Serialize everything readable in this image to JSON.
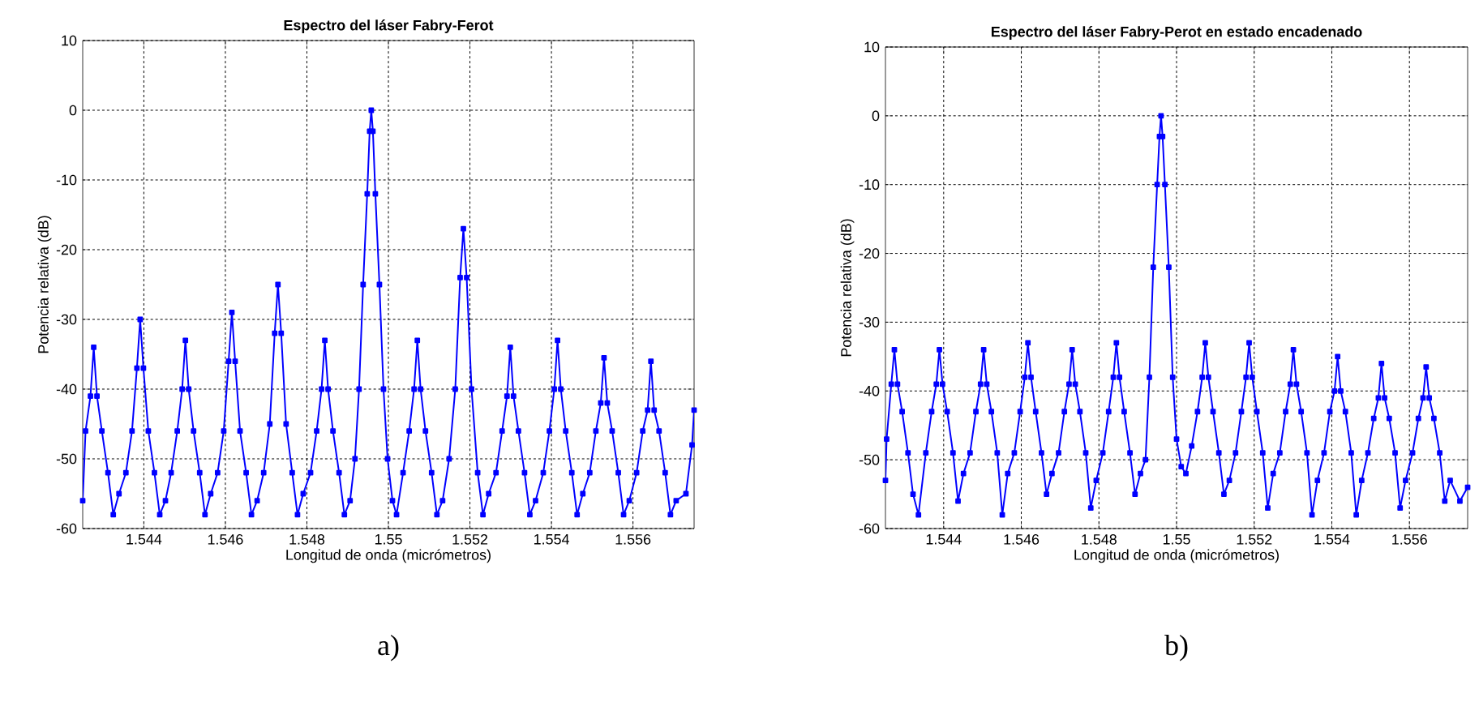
{
  "chart_data": [
    {
      "type": "line",
      "title": "Espectro del láser Fabry-Ferot",
      "xlabel": "Longitud de onda (micrómetros)",
      "ylabel": "Potencia relativa (dB)",
      "annotations": [
        "a)"
      ],
      "xlim": [
        1.5425,
        1.5575
      ],
      "ylim": [
        -60,
        10
      ],
      "xticks": [
        1.544,
        1.546,
        1.548,
        1.55,
        1.552,
        1.554,
        1.556
      ],
      "yticks": [
        -60,
        -50,
        -40,
        -30,
        -20,
        -10,
        0,
        10
      ],
      "grid": true,
      "marker": "square",
      "line_style": "solid",
      "color": "#0000ff",
      "x": [
        1.5425,
        1.54257,
        1.54269,
        1.54277,
        1.54285,
        1.54297,
        1.54312,
        1.54325,
        1.54339,
        1.54356,
        1.54371,
        1.54383,
        1.54391,
        1.54399,
        1.54411,
        1.54426,
        1.54439,
        1.54453,
        1.54467,
        1.54482,
        1.54494,
        1.54502,
        1.5451,
        1.54522,
        1.54537,
        1.5455,
        1.54564,
        1.54581,
        1.54596,
        1.54608,
        1.54616,
        1.54624,
        1.54636,
        1.54651,
        1.54664,
        1.54678,
        1.54694,
        1.54709,
        1.54721,
        1.54729,
        1.54737,
        1.54749,
        1.54764,
        1.54777,
        1.54791,
        1.54809,
        1.54824,
        1.54836,
        1.54844,
        1.54852,
        1.54864,
        1.54879,
        1.54892,
        1.54906,
        1.54918,
        1.54928,
        1.54938,
        1.54948,
        1.54954,
        1.54958,
        1.54962,
        1.54968,
        1.54978,
        1.54988,
        1.54998,
        1.5501,
        1.5502,
        1.55036,
        1.55051,
        1.55063,
        1.55071,
        1.55079,
        1.55091,
        1.55106,
        1.55119,
        1.55133,
        1.55149,
        1.55164,
        1.55176,
        1.55184,
        1.55192,
        1.55204,
        1.55219,
        1.55232,
        1.55246,
        1.55264,
        1.55279,
        1.55291,
        1.55299,
        1.55307,
        1.55319,
        1.55334,
        1.55347,
        1.55361,
        1.5538,
        1.55395,
        1.55407,
        1.55415,
        1.55423,
        1.55435,
        1.5545,
        1.55463,
        1.55477,
        1.55494,
        1.55509,
        1.55521,
        1.55529,
        1.55537,
        1.55549,
        1.55564,
        1.55577,
        1.55591,
        1.55609,
        1.55624,
        1.55636,
        1.55644,
        1.55652,
        1.55664,
        1.55679,
        1.55692,
        1.55706,
        1.5573,
        1.55745,
        1.5575
      ],
      "values": [
        -56,
        -46,
        -41,
        -34,
        -41,
        -46,
        -52,
        -58,
        -55,
        -52,
        -46,
        -37,
        -30,
        -37,
        -46,
        -52,
        -58,
        -56,
        -52,
        -46,
        -40,
        -33,
        -40,
        -46,
        -52,
        -58,
        -55,
        -52,
        -46,
        -36,
        -29,
        -36,
        -46,
        -52,
        -58,
        -56,
        -52,
        -45,
        -32,
        -25,
        -32,
        -45,
        -52,
        -58,
        -55,
        -52,
        -46,
        -40,
        -33,
        -40,
        -46,
        -52,
        -58,
        -56,
        -50,
        -40,
        -25,
        -12,
        -3,
        0,
        -3,
        -12,
        -25,
        -40,
        -50,
        -56,
        -58,
        -52,
        -46,
        -40,
        -33,
        -40,
        -46,
        -52,
        -58,
        -56,
        -50,
        -40,
        -24,
        -17,
        -24,
        -40,
        -52,
        -58,
        -55,
        -52,
        -46,
        -41,
        -34,
        -41,
        -46,
        -52,
        -58,
        -56,
        -52,
        -46,
        -40,
        -33,
        -40,
        -46,
        -52,
        -58,
        -55,
        -52,
        -46,
        -42,
        -35.5,
        -42,
        -46,
        -52,
        -58,
        -56,
        -52,
        -46,
        -43,
        -36,
        -43,
        -46,
        -52,
        -58,
        -56,
        -55,
        -48,
        -43
      ]
    },
    {
      "type": "line",
      "title": "Espectro del láser Fabry-Perot en estado encadenado",
      "xlabel": "Longitud de onda (micrómetros)",
      "ylabel": "Potencia relativa (dB)",
      "annotations": [
        "b)"
      ],
      "xlim": [
        1.5425,
        1.5575
      ],
      "ylim": [
        -60,
        10
      ],
      "xticks": [
        1.544,
        1.546,
        1.548,
        1.55,
        1.552,
        1.554,
        1.556
      ],
      "yticks": [
        -60,
        -50,
        -40,
        -30,
        -20,
        -10,
        0,
        10
      ],
      "grid": true,
      "marker": "square",
      "line_style": "solid",
      "color": "#0000ff",
      "x": [
        1.5425,
        1.54253,
        1.54265,
        1.54273,
        1.54281,
        1.54293,
        1.54308,
        1.54321,
        1.54335,
        1.54354,
        1.54369,
        1.54381,
        1.54389,
        1.54397,
        1.54409,
        1.54424,
        1.54437,
        1.54451,
        1.54468,
        1.54483,
        1.54495,
        1.54503,
        1.54511,
        1.54523,
        1.54538,
        1.54551,
        1.54565,
        1.54582,
        1.54597,
        1.54609,
        1.54617,
        1.54625,
        1.54637,
        1.54652,
        1.54665,
        1.54679,
        1.54696,
        1.54711,
        1.54723,
        1.54731,
        1.54739,
        1.54751,
        1.54766,
        1.54779,
        1.54793,
        1.5481,
        1.54825,
        1.54837,
        1.54845,
        1.54853,
        1.54865,
        1.5488,
        1.54893,
        1.54907,
        1.5492,
        1.5493,
        1.5494,
        1.5495,
        1.54956,
        1.5496,
        1.54964,
        1.5497,
        1.5498,
        1.5499,
        1.55,
        1.55012,
        1.55024,
        1.55039,
        1.55054,
        1.55066,
        1.55074,
        1.55082,
        1.55094,
        1.55109,
        1.55122,
        1.55136,
        1.55152,
        1.55167,
        1.55179,
        1.55187,
        1.55195,
        1.55207,
        1.55222,
        1.55235,
        1.55249,
        1.55266,
        1.55281,
        1.55293,
        1.55301,
        1.55309,
        1.55321,
        1.55336,
        1.55349,
        1.55363,
        1.5538,
        1.55395,
        1.55407,
        1.55415,
        1.55423,
        1.55435,
        1.5545,
        1.55463,
        1.55477,
        1.55493,
        1.55508,
        1.5552,
        1.55528,
        1.55536,
        1.55548,
        1.55563,
        1.55576,
        1.5559,
        1.55608,
        1.55623,
        1.55635,
        1.55643,
        1.55651,
        1.55663,
        1.55678,
        1.55691,
        1.55705,
        1.5573,
        1.5575
      ],
      "values": [
        -53,
        -47,
        -39,
        -34,
        -39,
        -43,
        -49,
        -55,
        -58,
        -49,
        -43,
        -39,
        -34,
        -39,
        -43,
        -49,
        -56,
        -52,
        -49,
        -43,
        -39,
        -34,
        -39,
        -43,
        -49,
        -58,
        -52,
        -49,
        -43,
        -38,
        -33,
        -38,
        -43,
        -49,
        -55,
        -52,
        -49,
        -43,
        -39,
        -34,
        -39,
        -43,
        -49,
        -57,
        -53,
        -49,
        -43,
        -38,
        -33,
        -38,
        -43,
        -49,
        -55,
        -52,
        -50,
        -38,
        -22,
        -10,
        -3,
        0,
        -3,
        -10,
        -22,
        -38,
        -47,
        -51,
        -52,
        -48,
        -43,
        -38,
        -33,
        -38,
        -43,
        -49,
        -55,
        -53,
        -49,
        -43,
        -38,
        -33,
        -38,
        -43,
        -49,
        -57,
        -52,
        -49,
        -43,
        -39,
        -34,
        -39,
        -43,
        -49,
        -58,
        -53,
        -49,
        -43,
        -40,
        -35,
        -40,
        -43,
        -49,
        -58,
        -53,
        -49,
        -44,
        -41,
        -36,
        -41,
        -44,
        -49,
        -57,
        -53,
        -49,
        -44,
        -41,
        -36.5,
        -41,
        -44,
        -49,
        -56,
        -53,
        -56,
        -54
      ]
    }
  ]
}
